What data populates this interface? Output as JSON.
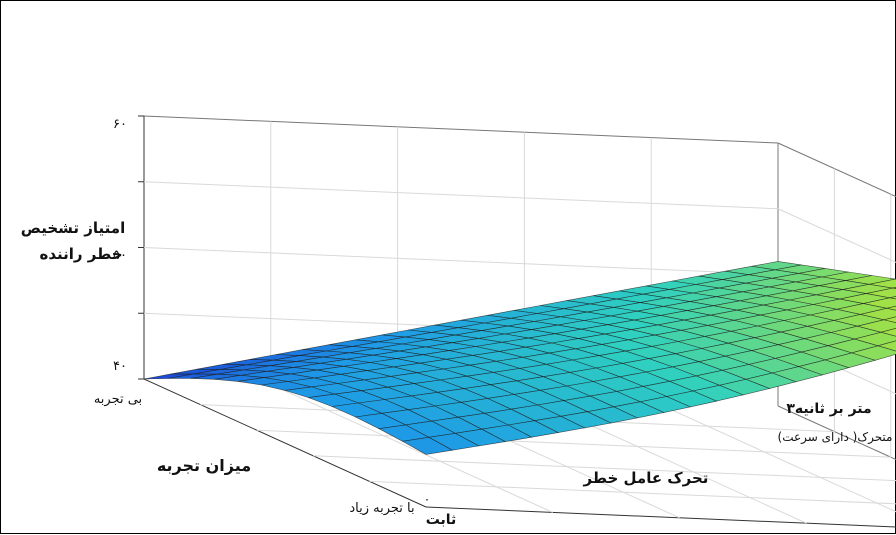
{
  "chart_data": {
    "type": "surface",
    "zlabel": [
      "امتیاز تشخیص",
      "خطر راننده"
    ],
    "xlabel": "میزان تجربه",
    "ylabel": "تحرک عامل خطر",
    "zticks": [
      "۴۰",
      "۵۰",
      "۶۰"
    ],
    "zlim": [
      40,
      60
    ],
    "x_ticks": [
      {
        "label": "بی تجربه",
        "value": 0
      },
      {
        "label": "با تجربه زیاد",
        "value": 1
      }
    ],
    "y_ticks": [
      {
        "label": "ثابت",
        "value": 0
      },
      {
        "label": "۳متر بر ثانیه",
        "value": 3
      }
    ],
    "y_tick_prefix": "۰",
    "y_sublabel": "متحرک( دارای سرعت)",
    "colormap": [
      "#1a3fd6",
      "#1e9be6",
      "#2fd0c0",
      "#9be04a",
      "#f5f20f"
    ],
    "surface_corners": {
      "inexperienced_static": 40,
      "experienced_static": 44,
      "inexperienced_moving": 51,
      "experienced_moving": 57.5
    },
    "grid": true
  }
}
